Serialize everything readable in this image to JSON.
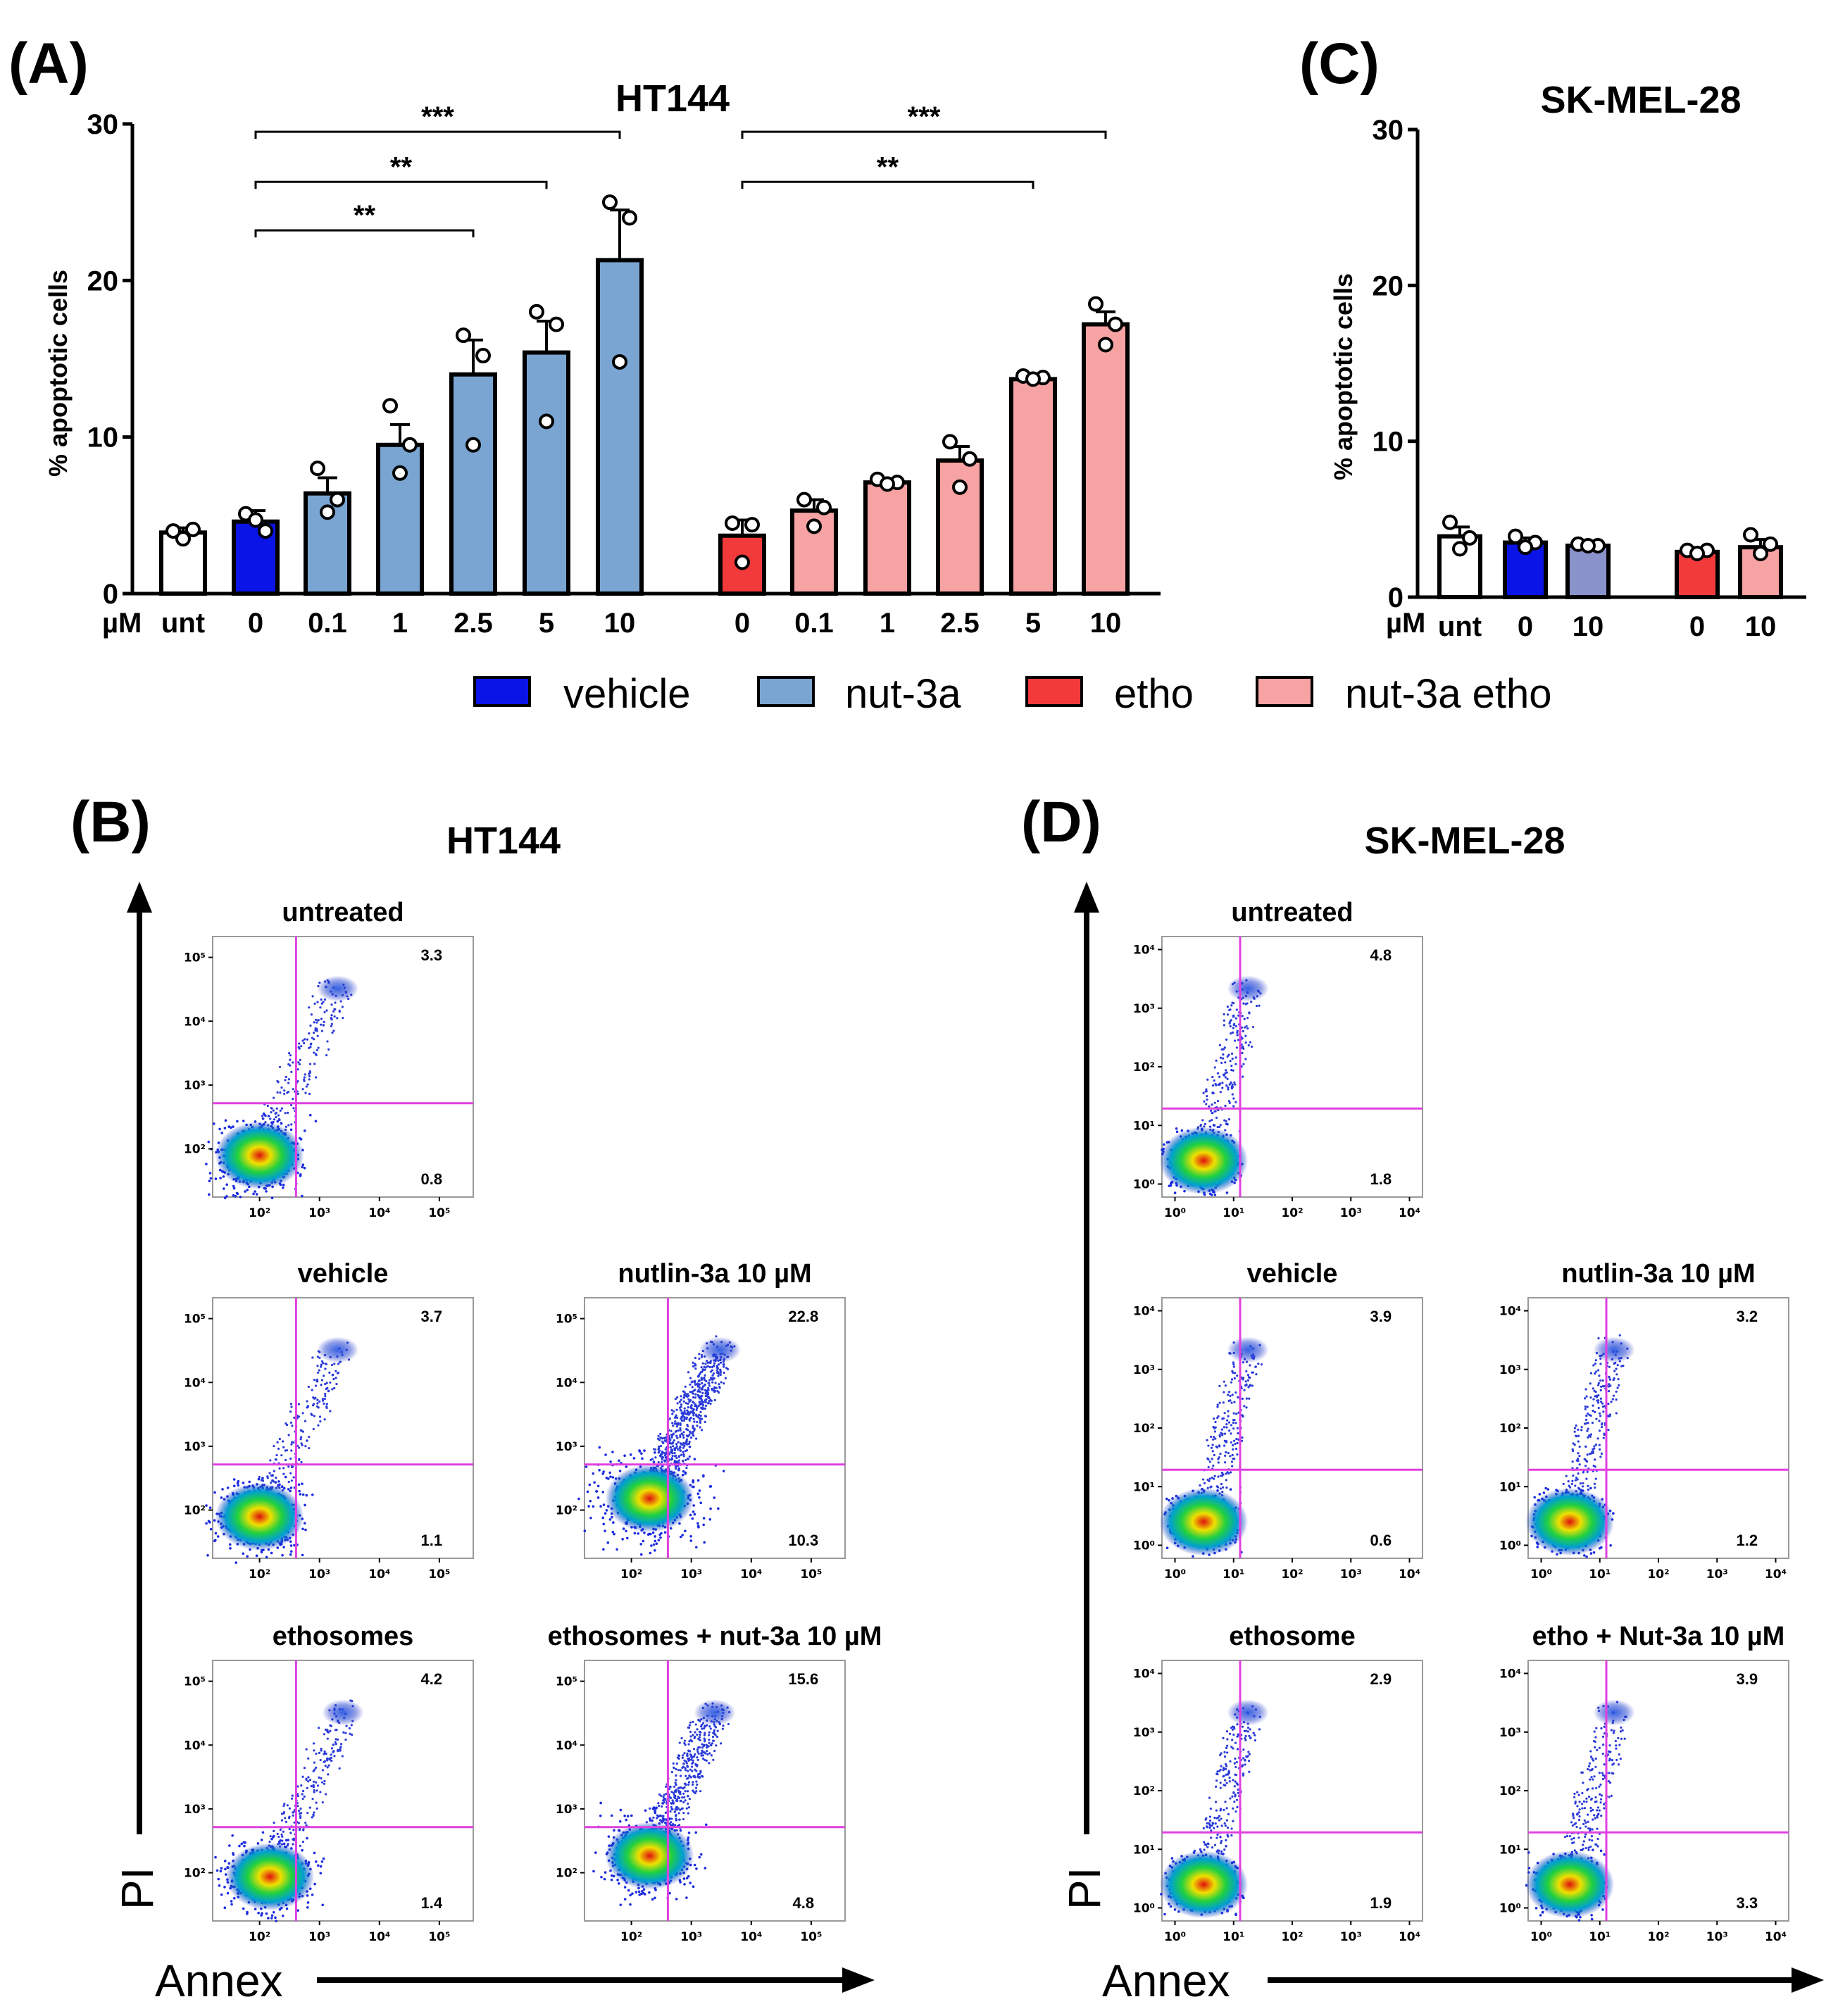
{
  "panels": {
    "A": {
      "label": "(A)",
      "title": "HT144"
    },
    "B": {
      "label": "(B)",
      "title": "HT144"
    },
    "C": {
      "label": "(C)",
      "title": "SK-MEL-28"
    },
    "D": {
      "label": "(D)",
      "title": "SK-MEL-28"
    }
  },
  "legend": [
    {
      "label": "vehicle",
      "color": "#0a14e6"
    },
    {
      "label": "nut-3a",
      "color": "#7aa5d2"
    },
    {
      "label": "etho",
      "color": "#f23a3a"
    },
    {
      "label": "nut-3a etho",
      "color": "#f7a3a3"
    }
  ],
  "chart_data": [
    {
      "type": "bar",
      "panel": "A",
      "title": "HT144",
      "ylabel": "% apoptotic cells",
      "xunit": "µM",
      "ylim": [
        0,
        30
      ],
      "yticks": [
        "0",
        "10",
        "20",
        "30"
      ],
      "categories": [
        "unt",
        "0",
        "0.1",
        "1",
        "2.5",
        "5",
        "10",
        "0",
        "0.1",
        "1",
        "2.5",
        "5",
        "10"
      ],
      "groups": [
        "untreated",
        "vehicle",
        "nut-3a",
        "nut-3a",
        "nut-3a",
        "nut-3a",
        "nut-3a",
        "etho",
        "nut-3a etho",
        "nut-3a etho",
        "nut-3a etho",
        "nut-3a etho",
        "nut-3a etho"
      ],
      "colors": [
        "#ffffff",
        "#0a14e6",
        "#7aa5d2",
        "#7aa5d2",
        "#7aa5d2",
        "#7aa5d2",
        "#7aa5d2",
        "#f23a3a",
        "#f7a3a3",
        "#f7a3a3",
        "#f7a3a3",
        "#f7a3a3",
        "#f7a3a3"
      ],
      "values": [
        3.9,
        4.6,
        6.4,
        9.5,
        14.0,
        15.4,
        21.3,
        3.7,
        5.3,
        7.1,
        8.5,
        13.7,
        17.2
      ],
      "sem": [
        0.3,
        0.7,
        1.0,
        1.3,
        2.2,
        2.0,
        3.2,
        1.0,
        0.7,
        0.2,
        0.9,
        0.1,
        0.8
      ],
      "points": [
        [
          4.0,
          4.1,
          3.5
        ],
        [
          5.1,
          4.0,
          4.7
        ],
        [
          8.0,
          6.0,
          5.2
        ],
        [
          12.0,
          9.5,
          7.7
        ],
        [
          16.5,
          15.2,
          9.5
        ],
        [
          18.0,
          17.2,
          11.0
        ],
        [
          25.0,
          24.0,
          14.8
        ],
        [
          4.5,
          4.4,
          2.0
        ],
        [
          6.0,
          5.5,
          4.3
        ],
        [
          7.3,
          7.1,
          7.0
        ],
        [
          9.7,
          8.6,
          6.8
        ],
        [
          13.9,
          13.8,
          13.7
        ],
        [
          18.5,
          17.2,
          15.9
        ]
      ],
      "significance": [
        {
          "from": 1,
          "to": 6,
          "label": "***",
          "y": 29.5
        },
        {
          "from": 1,
          "to": 5,
          "label": "**",
          "y": 26.3
        },
        {
          "from": 1,
          "to": 4,
          "label": "**",
          "y": 23.2
        },
        {
          "from": 7,
          "to": 12,
          "label": "***",
          "y": 29.5
        },
        {
          "from": 7,
          "to": 11,
          "label": "**",
          "y": 26.3
        }
      ]
    },
    {
      "type": "bar",
      "panel": "C",
      "title": "SK-MEL-28",
      "ylabel": "% apoptotic cells",
      "xunit": "µM",
      "ylim": [
        0,
        30
      ],
      "yticks": [
        "0",
        "10",
        "20",
        "30"
      ],
      "categories": [
        "unt",
        "0",
        "10",
        "0",
        "10"
      ],
      "colors": [
        "#ffffff",
        "#0a14e6",
        "#8a92cc",
        "#f23a3a",
        "#f7a3a3"
      ],
      "values": [
        3.9,
        3.5,
        3.3,
        2.9,
        3.2
      ],
      "sem": [
        0.6,
        0.3,
        0.1,
        0.1,
        0.5
      ],
      "points": [
        [
          4.8,
          3.8,
          3.1
        ],
        [
          3.9,
          3.5,
          3.2
        ],
        [
          3.4,
          3.3,
          3.3
        ],
        [
          3.0,
          3.0,
          2.8
        ],
        [
          4.0,
          3.4,
          2.8
        ]
      ]
    }
  ],
  "flow_B": {
    "y_axis": "PI",
    "x_axis": "Annex",
    "x_ticks": [
      "10²",
      "10³",
      "10⁴",
      "10⁵"
    ],
    "y_ticks": [
      "10⁵",
      "10⁴",
      "10³",
      "10²"
    ],
    "plots": [
      {
        "title": "untreated",
        "upper_right": "3.3",
        "lower_right": "0.8"
      },
      {
        "title": "vehicle",
        "upper_right": "3.7",
        "lower_right": "1.1"
      },
      {
        "title": "nutlin-3a 10 µM",
        "upper_right": "22.8",
        "lower_right": "10.3"
      },
      {
        "title": "ethosomes",
        "upper_right": "4.2",
        "lower_right": "1.4"
      },
      {
        "title": "ethosomes + nut-3a 10 µM",
        "upper_right": "15.6",
        "lower_right": "4.8"
      }
    ]
  },
  "flow_D": {
    "y_axis": "PI",
    "x_axis": "Annex",
    "x_ticks": [
      "10⁰",
      "10¹",
      "10²",
      "10³",
      "10⁴"
    ],
    "y_ticks": [
      "10⁴",
      "10³",
      "10²",
      "10¹",
      "10⁰"
    ],
    "plots": [
      {
        "title": "untreated",
        "upper_right": "4.8",
        "lower_right": "1.8"
      },
      {
        "title": "vehicle",
        "upper_right": "3.9",
        "lower_right": "0.6"
      },
      {
        "title": "nutlin-3a 10 µM",
        "upper_right": "3.2",
        "lower_right": "1.2"
      },
      {
        "title": "ethosome",
        "upper_right": "2.9",
        "lower_right": "1.9"
      },
      {
        "title": "etho + Nut-3a 10 µM",
        "upper_right": "3.9",
        "lower_right": "3.3"
      }
    ]
  }
}
